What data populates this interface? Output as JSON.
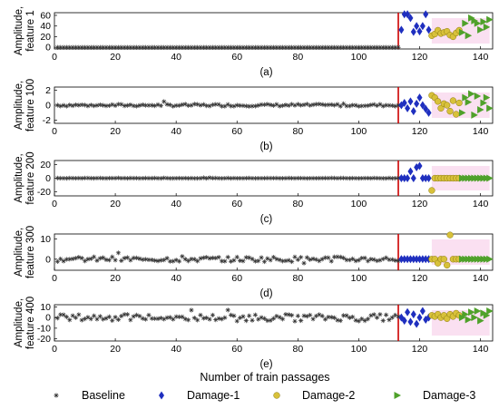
{
  "global": {
    "x_axis_label": "Number of  train passages",
    "damage_line_x": 113,
    "xlim": [
      0,
      144
    ],
    "xticks": [
      0,
      20,
      40,
      60,
      80,
      100,
      120,
      140
    ]
  },
  "legend": {
    "placement": "bottom",
    "entries": [
      {
        "name": "Baseline",
        "color": "#333333",
        "marker": "asterisk"
      },
      {
        "name": "Damage-1",
        "color": "#1f2fbf",
        "marker": "diamond"
      },
      {
        "name": "Damage-2",
        "color": "#d8c13a",
        "marker": "circle"
      },
      {
        "name": "Damage-3",
        "color": "#4fa12a",
        "marker": "triangle-right"
      }
    ]
  },
  "colors": {
    "baseline": "#333333",
    "damage1": "#1f2fbf",
    "damage2": "#d8c13a",
    "damage3": "#4fa12a",
    "damage_line": "#cc0000",
    "highlight": "#f6c6e6"
  },
  "chart_data": [
    {
      "type": "scatter",
      "panel": "(a)",
      "ylabel": [
        "Amplitude,",
        "feature 1"
      ],
      "ylim": [
        -3,
        65
      ],
      "yticks": [
        0,
        20,
        40,
        60
      ],
      "series": [
        {
          "name": "Baseline",
          "x": [
            1,
            113
          ],
          "y": [
            0,
            0
          ],
          "uniform": true
        },
        {
          "name": "Damage-1",
          "x": [
            114,
            115,
            116,
            117,
            118,
            119,
            120,
            121,
            122,
            123
          ],
          "y": [
            33,
            62,
            62,
            55,
            29,
            40,
            30,
            40,
            62,
            33
          ]
        },
        {
          "name": "Damage-2",
          "x": [
            124,
            125,
            126,
            127,
            128,
            129,
            130,
            131,
            132,
            133
          ],
          "y": [
            22,
            25,
            32,
            26,
            28,
            30,
            23,
            20,
            27,
            32
          ]
        },
        {
          "name": "Damage-3",
          "x": [
            134,
            135,
            136,
            137,
            138,
            139,
            140,
            141,
            142,
            143
          ],
          "y": [
            28,
            45,
            22,
            55,
            50,
            45,
            33,
            48,
            38,
            52
          ]
        }
      ]
    },
    {
      "type": "scatter",
      "panel": "(b)",
      "ylabel": [
        "Amplitude,",
        "feature 100"
      ],
      "ylim": [
        -2.4,
        2.4
      ],
      "yticks": [
        -2,
        0,
        2
      ],
      "series": [
        {
          "name": "Baseline",
          "x": [
            1,
            113
          ],
          "y": [
            0,
            0
          ],
          "jitter": 0.3
        },
        {
          "name": "Damage-1",
          "x": [
            114,
            115,
            116,
            117,
            118,
            119,
            120,
            121,
            122,
            123
          ],
          "y": [
            0,
            0.3,
            -0.4,
            0.5,
            -0.8,
            0.2,
            1.0,
            0.0,
            -0.5,
            -1.0
          ]
        },
        {
          "name": "Damage-2",
          "x": [
            124,
            125,
            126,
            127,
            128,
            129,
            130,
            131,
            132,
            133
          ],
          "y": [
            1.3,
            1.0,
            0.5,
            -0.4,
            0.2,
            0.0,
            -0.8,
            0.6,
            -1.2,
            0.3
          ]
        },
        {
          "name": "Damage-3",
          "x": [
            134,
            135,
            136,
            137,
            138,
            139,
            140,
            141,
            142,
            143
          ],
          "y": [
            -1.0,
            1.0,
            0.4,
            1.5,
            -1.3,
            1.2,
            -0.6,
            0.3,
            1.0,
            -0.4
          ]
        }
      ]
    },
    {
      "type": "scatter",
      "panel": "(c)",
      "ylabel": [
        "Amplitude,",
        "feature 200"
      ],
      "ylim": [
        -26,
        26
      ],
      "yticks": [
        -20,
        0,
        20
      ],
      "series": [
        {
          "name": "Baseline",
          "x": [
            1,
            113
          ],
          "y": [
            0,
            0
          ],
          "jitter": 0.5
        },
        {
          "name": "Damage-1",
          "x": [
            114,
            115,
            116,
            117,
            118,
            119,
            120,
            121,
            122,
            123
          ],
          "y": [
            0,
            0,
            0,
            10,
            0,
            16,
            18,
            0,
            0,
            0
          ]
        },
        {
          "name": "Damage-2",
          "x": [
            124,
            125,
            126,
            127,
            128,
            129,
            130,
            131,
            132,
            133
          ],
          "y": [
            -18,
            0,
            0,
            0,
            0,
            0,
            0,
            0,
            0,
            0
          ]
        },
        {
          "name": "Damage-3",
          "x": [
            134,
            135,
            136,
            137,
            138,
            139,
            140,
            141,
            142,
            143
          ],
          "y": [
            0,
            0,
            0,
            0,
            0,
            0,
            0,
            0,
            0,
            0
          ]
        }
      ]
    },
    {
      "type": "scatter",
      "panel": "(d)",
      "ylabel": [
        "Amplitude,",
        "feature 300"
      ],
      "ylim": [
        -5.5,
        12.5
      ],
      "yticks": [
        0,
        10
      ],
      "series": [
        {
          "name": "Baseline",
          "x": [
            1,
            113
          ],
          "y": [
            0,
            0
          ],
          "jitter": 2.5
        },
        {
          "name": "Damage-1",
          "x": [
            114,
            115,
            116,
            117,
            118,
            119,
            120,
            121,
            122,
            123
          ],
          "y": [
            0,
            0,
            0,
            0,
            0,
            0,
            0,
            0,
            0,
            0
          ]
        },
        {
          "name": "Damage-2",
          "x": [
            124,
            125,
            126,
            127,
            128,
            129,
            130,
            131,
            132,
            133
          ],
          "y": [
            0,
            0,
            -2,
            0,
            0,
            -3,
            12,
            0,
            0,
            0
          ]
        },
        {
          "name": "Damage-3",
          "x": [
            134,
            135,
            136,
            137,
            138,
            139,
            140,
            141,
            142,
            143
          ],
          "y": [
            0,
            0,
            0,
            0,
            0,
            0,
            0,
            0,
            0,
            0
          ]
        }
      ]
    },
    {
      "type": "scatter",
      "panel": "(e)",
      "ylabel": [
        "Amplitude,",
        "feature 400"
      ],
      "ylim": [
        -22,
        12
      ],
      "yticks": [
        -20,
        -10,
        0,
        10
      ],
      "series": [
        {
          "name": "Baseline",
          "x": [
            1,
            113
          ],
          "y": [
            0,
            0
          ],
          "jitter": 6
        },
        {
          "name": "Damage-1",
          "x": [
            114,
            115,
            116,
            117,
            118,
            119,
            120,
            121,
            122,
            123
          ],
          "y": [
            0,
            -3,
            5,
            -4,
            3,
            -6,
            0,
            6,
            -2,
            0
          ]
        },
        {
          "name": "Damage-2",
          "x": [
            124,
            125,
            126,
            127,
            128,
            129,
            130,
            131,
            132,
            133
          ],
          "y": [
            2,
            1,
            3,
            0,
            2,
            -1,
            3,
            1,
            4,
            2
          ]
        },
        {
          "name": "Damage-3",
          "x": [
            134,
            135,
            136,
            137,
            138,
            139,
            140,
            141,
            142,
            143
          ],
          "y": [
            0,
            3,
            -2,
            5,
            0,
            6,
            -3,
            4,
            2,
            6
          ]
        }
      ]
    }
  ]
}
